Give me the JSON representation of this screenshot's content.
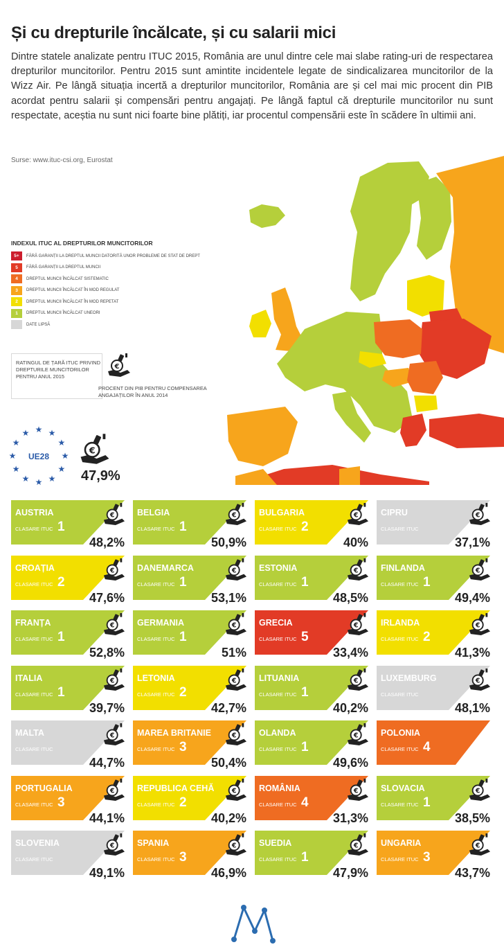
{
  "header": {
    "title": "Și cu drepturile încălcate, și cu salarii mici",
    "intro": "Dintre statele analizate pentru ITUC 2015, România are unul dintre cele mai slabe rating-uri de respectarea drepturilor muncitorilor. Pentru 2015 sunt amintite incidentele legate de sindicalizarea muncitorilor de la Wizz Air. Pe lângă situația incertă a drepturilor muncitorilor, România are și cel mai mic procent din PIB acordat pentru salarii și compensări pentru angajați. Pe lângă faptul că drepturile muncitorilor nu sunt respectate, aceștia nu sunt nici foarte bine plătiți, iar procentul compensării este în scădere în ultimii ani.",
    "source": "Surse: www.ituc-csi.org, Eurostat"
  },
  "colors": {
    "5plus": "#cc1e2e",
    "5": "#e23b26",
    "4": "#ef6c22",
    "3": "#f7a51c",
    "2": "#f2df00",
    "1": "#b5cf3b",
    "na": "#d7d7d7"
  },
  "legend": {
    "title": "INDEXUL ITUC AL DREPTURILOR MUNCITORILOR",
    "items": [
      {
        "key": "5+",
        "color": "#cc1e2e",
        "label": "Fără garanții la dreptul muncii datorită unor probleme de stat de drept"
      },
      {
        "key": "5",
        "color": "#e23b26",
        "label": "Fără garanții la dreptul muncii"
      },
      {
        "key": "4",
        "color": "#ef6c22",
        "label": "Dreptul muncii încălcat sistematic"
      },
      {
        "key": "3",
        "color": "#f7a51c",
        "label": "Dreptul muncii încălcat în mod regulat"
      },
      {
        "key": "2",
        "color": "#f2df00",
        "label": "Dreptul muncii încălcat în mod repetat"
      },
      {
        "key": "1",
        "color": "#b5cf3b",
        "label": "Dreptul muncii încălcat uneori"
      },
      {
        "key": "",
        "color": "#d7d7d7",
        "label": "Date lipsă"
      }
    ]
  },
  "note": {
    "box_text": "RATINGUL DE ȚARĂ ITUC PRIVIND DREPTURILE MUNCITORILOR PENTRU ANUL 2015",
    "caption": "PROCENT DIN PIB PENTRU COMPENSAREA ANGAJAȚILOR ÎN ANUL 2014"
  },
  "eu": {
    "label": "UE28",
    "value": "47,9%"
  },
  "rank_label": "CLASARE ITUC",
  "countries": [
    {
      "name": "AUSTRIA",
      "rank": "1",
      "pct": "48,2%",
      "level": "1"
    },
    {
      "name": "BELGIA",
      "rank": "1",
      "pct": "50,9%",
      "level": "1"
    },
    {
      "name": "BULGARIA",
      "rank": "2",
      "pct": "40%",
      "level": "2"
    },
    {
      "name": "CIPRU",
      "rank": "",
      "pct": "37,1%",
      "level": "na"
    },
    {
      "name": "CROAȚIA",
      "rank": "2",
      "pct": "47,6%",
      "level": "2"
    },
    {
      "name": "DANEMARCA",
      "rank": "1",
      "pct": "53,1%",
      "level": "1"
    },
    {
      "name": "ESTONIA",
      "rank": "1",
      "pct": "48,5%",
      "level": "1"
    },
    {
      "name": "FINLANDA",
      "rank": "1",
      "pct": "49,4%",
      "level": "1"
    },
    {
      "name": "FRANȚA",
      "rank": "1",
      "pct": "52,8%",
      "level": "1"
    },
    {
      "name": "GERMANIA",
      "rank": "1",
      "pct": "51%",
      "level": "1"
    },
    {
      "name": "GRECIA",
      "rank": "5",
      "pct": "33,4%",
      "level": "5"
    },
    {
      "name": "IRLANDA",
      "rank": "2",
      "pct": "41,3%",
      "level": "2"
    },
    {
      "name": "ITALIA",
      "rank": "1",
      "pct": "39,7%",
      "level": "1"
    },
    {
      "name": "LETONIA",
      "rank": "2",
      "pct": "42,7%",
      "level": "2"
    },
    {
      "name": "LITUANIA",
      "rank": "1",
      "pct": "40,2%",
      "level": "1"
    },
    {
      "name": "LUXEMBURG",
      "rank": "",
      "pct": "48,1%",
      "level": "na"
    },
    {
      "name": "MALTA",
      "rank": "",
      "pct": "44,7%",
      "level": "na"
    },
    {
      "name": "MAREA BRITANIE",
      "rank": "3",
      "pct": "50,4%",
      "level": "3"
    },
    {
      "name": "OLANDA",
      "rank": "1",
      "pct": "49,6%",
      "level": "1"
    },
    {
      "name": "POLONIA",
      "rank": "4",
      "pct": "",
      "level": "4"
    },
    {
      "name": "PORTUGALIA",
      "rank": "3",
      "pct": "44,1%",
      "level": "3"
    },
    {
      "name": "REPUBLICA CEHĂ",
      "rank": "2",
      "pct": "40,2%",
      "level": "2"
    },
    {
      "name": "ROMÂNIA",
      "rank": "4",
      "pct": "31,3%",
      "level": "4"
    },
    {
      "name": "SLOVACIA",
      "rank": "1",
      "pct": "38,5%",
      "level": "1"
    },
    {
      "name": "SLOVENIA",
      "rank": "",
      "pct": "49,1%",
      "level": "na"
    },
    {
      "name": "SPANIA",
      "rank": "3",
      "pct": "46,9%",
      "level": "3"
    },
    {
      "name": "SUEDIA",
      "rank": "1",
      "pct": "47,9%",
      "level": "1"
    },
    {
      "name": "UNGARIA",
      "rank": "3",
      "pct": "43,7%",
      "level": "3"
    }
  ]
}
